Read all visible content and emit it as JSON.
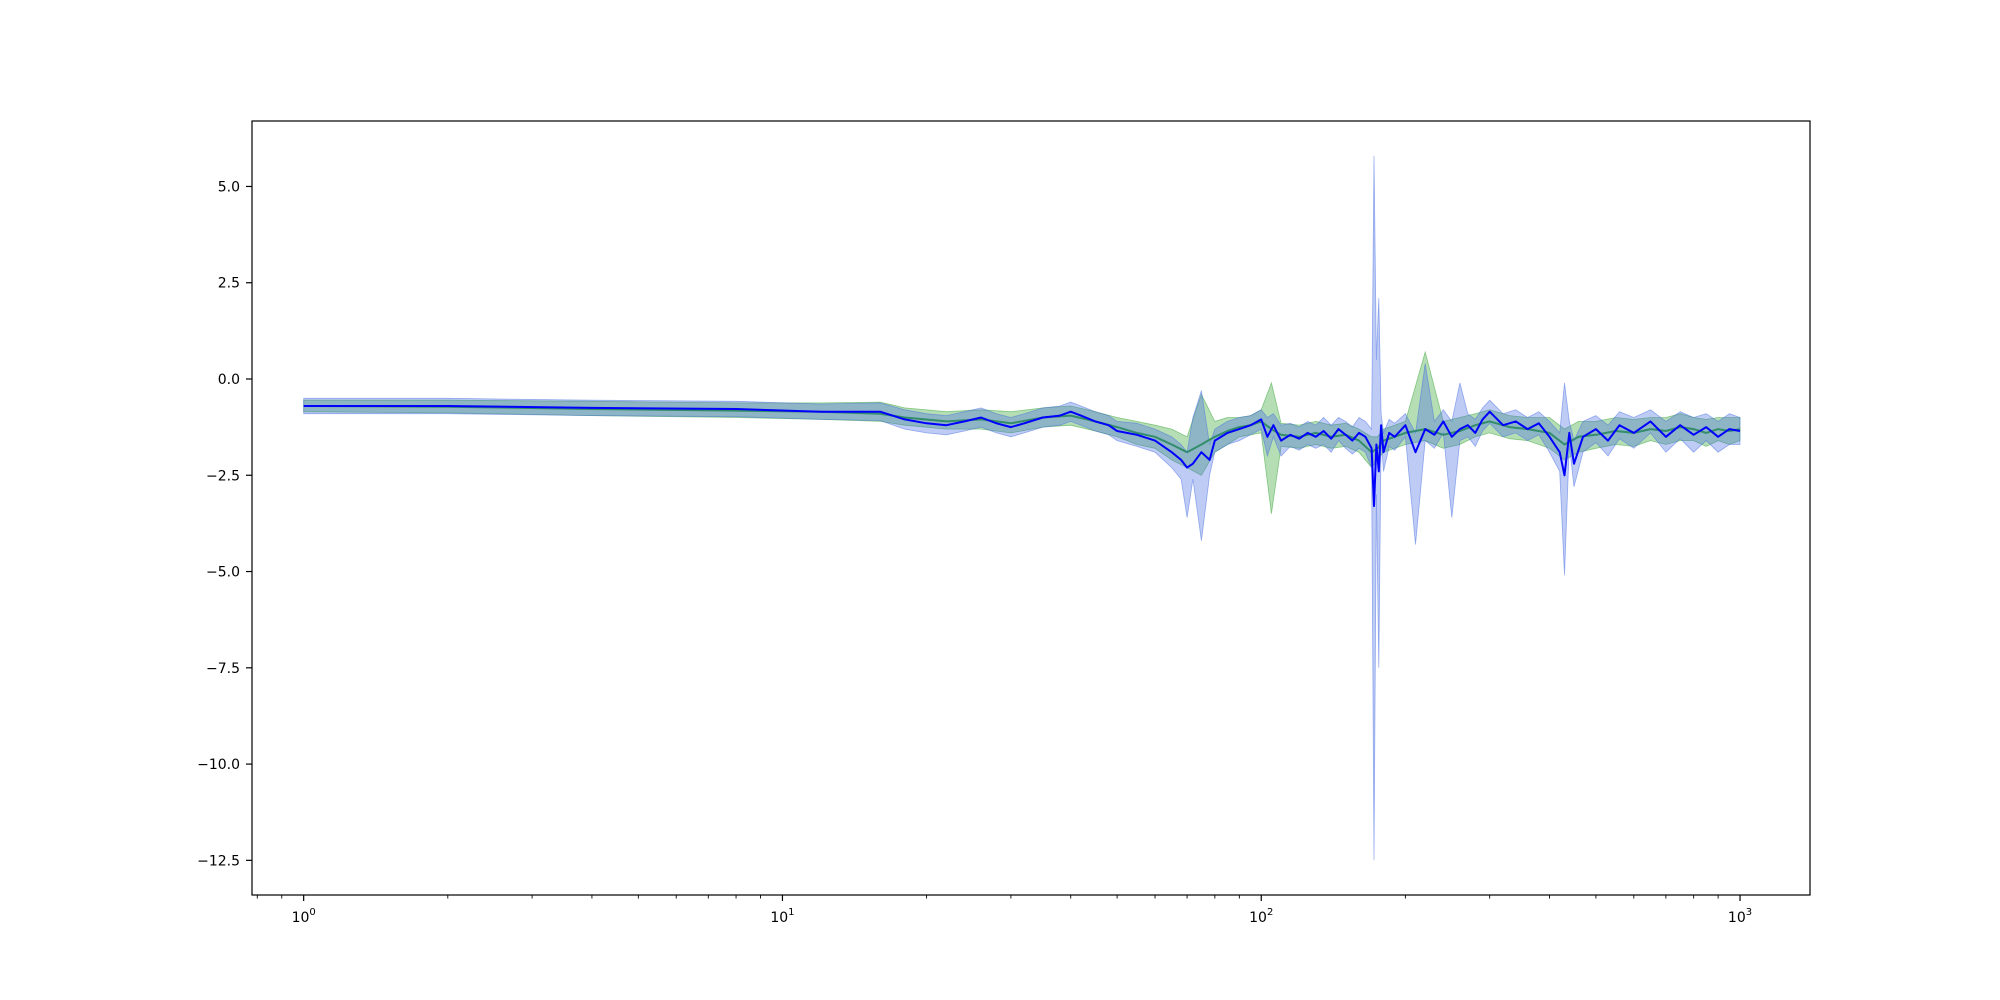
{
  "chart_data": {
    "type": "line",
    "title": "",
    "xlabel": "",
    "ylabel": "",
    "xscale": "log",
    "xlim": [
      0.78,
      1400
    ],
    "ylim": [
      -13.4,
      6.7
    ],
    "grid": false,
    "legend": "none",
    "x_ticks": [
      {
        "value": 1,
        "label": "10",
        "exp": "0"
      },
      {
        "value": 10,
        "label": "10",
        "exp": "1"
      },
      {
        "value": 100,
        "label": "10",
        "exp": "2"
      },
      {
        "value": 1000,
        "label": "10",
        "exp": "3"
      }
    ],
    "y_ticks": [
      {
        "value": 5.0,
        "label": "5.0"
      },
      {
        "value": 2.5,
        "label": "2.5"
      },
      {
        "value": 0.0,
        "label": "0.0"
      },
      {
        "value": -2.5,
        "label": "−2.5"
      },
      {
        "value": -5.0,
        "label": "−5.0"
      },
      {
        "value": -7.5,
        "label": "−7.5"
      },
      {
        "value": -10.0,
        "label": "−10.0"
      },
      {
        "value": -12.5,
        "label": "−12.5"
      }
    ],
    "series": [
      {
        "color": "#2ca02c",
        "band_color": "#2ca02c",
        "band_opacity": 0.35,
        "x": [
          1,
          2,
          4,
          8,
          12,
          16,
          18,
          22,
          26,
          30,
          35,
          40,
          45,
          50,
          55,
          60,
          65,
          70,
          75,
          80,
          85,
          90,
          95,
          100,
          105,
          110,
          120,
          130,
          140,
          150,
          160,
          170,
          175,
          180,
          190,
          200,
          220,
          240,
          260,
          280,
          300,
          330,
          360,
          400,
          430,
          460,
          500,
          550,
          600,
          650,
          700,
          750,
          800,
          850,
          900,
          950,
          1000
        ],
        "y": [
          -0.7,
          -0.72,
          -0.78,
          -0.82,
          -0.85,
          -0.9,
          -1.0,
          -1.1,
          -1.05,
          -1.15,
          -1.0,
          -0.95,
          -1.1,
          -1.25,
          -1.4,
          -1.5,
          -1.7,
          -1.9,
          -1.7,
          -1.5,
          -1.35,
          -1.25,
          -1.2,
          -1.1,
          -1.3,
          -1.45,
          -1.5,
          -1.4,
          -1.5,
          -1.45,
          -1.6,
          -1.9,
          -1.8,
          -1.6,
          -1.5,
          -1.4,
          -1.3,
          -1.45,
          -1.35,
          -1.2,
          -1.1,
          -1.25,
          -1.3,
          -1.4,
          -1.7,
          -1.5,
          -1.45,
          -1.35,
          -1.4,
          -1.3,
          -1.35,
          -1.25,
          -1.3,
          -1.4,
          -1.3,
          -1.35,
          -1.3
        ],
        "upper": [
          -0.55,
          -0.55,
          -0.58,
          -0.62,
          -0.62,
          -0.6,
          -0.75,
          -0.85,
          -0.8,
          -0.85,
          -0.75,
          -0.7,
          -0.85,
          -1.0,
          -1.1,
          -1.2,
          -1.3,
          -1.5,
          -0.4,
          -1.1,
          -1.0,
          -1.0,
          -0.95,
          -0.8,
          -0.1,
          -1.15,
          -1.2,
          -1.1,
          -1.2,
          -1.15,
          -1.3,
          -1.5,
          -1.5,
          -1.3,
          -1.2,
          -1.1,
          0.7,
          -1.1,
          -1.0,
          -0.9,
          -0.8,
          -0.95,
          -1.0,
          -1.0,
          -1.3,
          -1.1,
          -1.1,
          -1.0,
          -1.05,
          -1.0,
          -1.0,
          -0.9,
          -1.0,
          -1.05,
          -1.0,
          -1.0,
          -1.0
        ],
        "lower": [
          -0.85,
          -0.88,
          -0.95,
          -1.0,
          -1.05,
          -1.1,
          -1.2,
          -1.3,
          -1.3,
          -1.4,
          -1.25,
          -1.2,
          -1.35,
          -1.5,
          -1.7,
          -1.8,
          -2.1,
          -2.3,
          -2.5,
          -1.9,
          -1.7,
          -1.5,
          -1.45,
          -1.4,
          -3.5,
          -1.75,
          -1.8,
          -1.7,
          -1.8,
          -1.75,
          -1.9,
          -2.3,
          -2.1,
          -1.9,
          -1.8,
          -1.7,
          -1.6,
          -1.8,
          -1.7,
          -1.5,
          -1.4,
          -1.55,
          -1.6,
          -1.8,
          -2.1,
          -1.9,
          -1.8,
          -1.7,
          -1.75,
          -1.6,
          -1.7,
          -1.6,
          -1.6,
          -1.75,
          -1.6,
          -1.7,
          -1.6
        ]
      },
      {
        "color": "#0000ff",
        "band_color": "#4169e1",
        "band_opacity": 0.35,
        "x": [
          1,
          2,
          4,
          8,
          12,
          16,
          18,
          20,
          22,
          24,
          26,
          28,
          30,
          32,
          35,
          38,
          40,
          42,
          45,
          48,
          50,
          55,
          60,
          65,
          68,
          70,
          72,
          75,
          78,
          80,
          85,
          90,
          95,
          100,
          103,
          106,
          110,
          115,
          120,
          125,
          130,
          135,
          140,
          145,
          150,
          155,
          160,
          165,
          170,
          172,
          174,
          176,
          178,
          180,
          185,
          190,
          200,
          210,
          220,
          230,
          240,
          250,
          260,
          270,
          280,
          290,
          300,
          320,
          340,
          360,
          380,
          400,
          420,
          430,
          440,
          450,
          470,
          500,
          530,
          560,
          600,
          650,
          700,
          750,
          800,
          850,
          900,
          950,
          1000
        ],
        "y": [
          -0.7,
          -0.7,
          -0.75,
          -0.78,
          -0.85,
          -0.85,
          -1.05,
          -1.15,
          -1.2,
          -1.1,
          -1.0,
          -1.15,
          -1.25,
          -1.15,
          -1.0,
          -0.95,
          -0.85,
          -0.95,
          -1.1,
          -1.2,
          -1.35,
          -1.45,
          -1.6,
          -1.9,
          -2.1,
          -2.3,
          -2.2,
          -1.9,
          -2.1,
          -1.6,
          -1.4,
          -1.3,
          -1.2,
          -1.05,
          -1.5,
          -1.2,
          -1.6,
          -1.45,
          -1.55,
          -1.4,
          -1.5,
          -1.35,
          -1.55,
          -1.3,
          -1.45,
          -1.6,
          -1.4,
          -1.5,
          -1.8,
          -3.3,
          -1.7,
          -2.4,
          -1.2,
          -1.9,
          -1.4,
          -1.5,
          -1.2,
          -1.9,
          -1.3,
          -1.45,
          -1.1,
          -1.5,
          -1.3,
          -1.2,
          -1.4,
          -1.05,
          -0.85,
          -1.2,
          -1.1,
          -1.3,
          -1.15,
          -1.5,
          -1.9,
          -2.5,
          -1.4,
          -2.2,
          -1.5,
          -1.3,
          -1.6,
          -1.2,
          -1.4,
          -1.1,
          -1.5,
          -1.2,
          -1.45,
          -1.25,
          -1.5,
          -1.3,
          -1.35
        ],
        "upper": [
          -0.5,
          -0.5,
          -0.55,
          -0.58,
          -0.65,
          -0.62,
          -0.8,
          -0.9,
          -0.95,
          -0.85,
          -0.75,
          -0.9,
          -1.0,
          -0.9,
          -0.75,
          -0.7,
          -0.6,
          -0.7,
          -0.85,
          -0.95,
          -1.1,
          -1.15,
          -1.3,
          -1.5,
          -1.7,
          -1.9,
          -1.0,
          -0.3,
          -1.7,
          -1.3,
          -1.1,
          -1.0,
          -0.95,
          -0.8,
          -1.0,
          -0.9,
          -1.2,
          -1.15,
          -1.25,
          -1.1,
          -1.2,
          -1.0,
          -1.2,
          -1.0,
          -1.1,
          -1.25,
          -1.0,
          -1.1,
          -1.3,
          5.8,
          0.5,
          2.1,
          -0.9,
          -1.4,
          -1.05,
          -1.15,
          -0.9,
          -1.4,
          0.4,
          -1.1,
          -0.8,
          -1.1,
          -0.1,
          -0.9,
          -1.05,
          -0.75,
          -0.55,
          -0.9,
          -0.8,
          -1.0,
          -0.85,
          -1.1,
          -1.4,
          -0.1,
          -1.1,
          -1.6,
          -1.1,
          -0.95,
          -1.2,
          -0.85,
          -1.0,
          -0.8,
          -1.1,
          -0.85,
          -1.0,
          -0.9,
          -1.1,
          -0.9,
          -1.0
        ],
        "lower": [
          -0.9,
          -0.9,
          -0.95,
          -0.98,
          -1.05,
          -1.08,
          -1.3,
          -1.4,
          -1.45,
          -1.35,
          -1.25,
          -1.4,
          -1.5,
          -1.4,
          -1.25,
          -1.2,
          -1.1,
          -1.2,
          -1.35,
          -1.45,
          -1.6,
          -1.75,
          -1.9,
          -2.3,
          -2.6,
          -3.6,
          -2.6,
          -4.2,
          -2.5,
          -1.9,
          -1.7,
          -1.6,
          -1.45,
          -1.3,
          -2.0,
          -1.5,
          -2.0,
          -1.75,
          -1.85,
          -1.7,
          -1.8,
          -1.7,
          -1.9,
          -1.6,
          -1.8,
          -1.95,
          -1.8,
          -1.9,
          -2.3,
          -12.5,
          -3.0,
          -7.5,
          -1.5,
          -2.4,
          -1.75,
          -1.85,
          -1.5,
          -4.3,
          -1.6,
          -1.8,
          -1.4,
          -3.6,
          -1.6,
          -1.5,
          -1.75,
          -1.35,
          -1.15,
          -1.5,
          -1.4,
          -1.6,
          -1.45,
          -1.9,
          -2.4,
          -5.1,
          -1.7,
          -2.8,
          -1.9,
          -1.65,
          -2.0,
          -1.55,
          -1.8,
          -1.4,
          -1.9,
          -1.55,
          -1.9,
          -1.6,
          -1.9,
          -1.7,
          -1.7
        ]
      }
    ]
  }
}
